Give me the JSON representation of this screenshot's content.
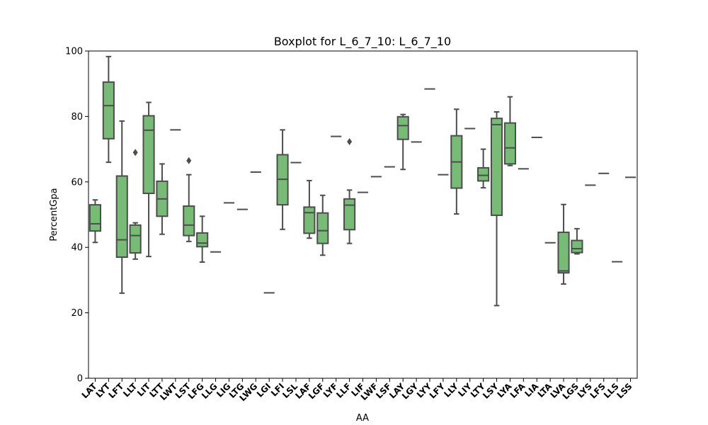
{
  "chart_data": {
    "type": "boxplot",
    "title": "Boxplot for L_6_7_10: L_6_7_10",
    "xlabel": "AA",
    "ylabel": "PercentGpa",
    "ylim": [
      0,
      100
    ],
    "yticks": [
      0,
      20,
      40,
      60,
      80,
      100
    ],
    "box_color": "#77bb77",
    "line_color": "#4d4d4d",
    "categories": [
      "LAT",
      "LYT",
      "LFT",
      "LLT",
      "LIT",
      "LTT",
      "LWT",
      "LST",
      "LFG",
      "LLG",
      "LIG",
      "LTG",
      "LWG",
      "LGI",
      "LFI",
      "LSL",
      "LAF",
      "LGF",
      "LYF",
      "LLF",
      "LIF",
      "LWF",
      "LSF",
      "LAY",
      "LGY",
      "LYY",
      "LFY",
      "LLY",
      "LIY",
      "LTY",
      "LSY",
      "LYA",
      "LFA",
      "LIA",
      "LTA",
      "LVA",
      "LGS",
      "LYS",
      "LFS",
      "LLS",
      "LSS"
    ],
    "boxes": [
      {
        "min": 41.5,
        "q1": 45,
        "median": 47.2,
        "q3": 53,
        "max": 54.5,
        "fliers": []
      },
      {
        "min": 66,
        "q1": 73.2,
        "median": 83.3,
        "q3": 90.5,
        "max": 98.3,
        "fliers": []
      },
      {
        "min": 26,
        "q1": 37,
        "median": 42.3,
        "q3": 61.8,
        "max": 78.6,
        "fliers": []
      },
      {
        "min": 36.4,
        "q1": 38.3,
        "median": 43.6,
        "q3": 46.8,
        "max": 47.5,
        "fliers": [
          69
        ]
      },
      {
        "min": 37.2,
        "q1": 56.5,
        "median": 75.8,
        "q3": 80.2,
        "max": 84.3,
        "fliers": []
      },
      {
        "min": 44,
        "q1": 49.5,
        "median": 54.8,
        "q3": 60.2,
        "max": 65.5,
        "fliers": []
      },
      {
        "min": 75.9,
        "q1": 75.9,
        "median": 75.9,
        "q3": 75.9,
        "max": 75.9,
        "fliers": []
      },
      {
        "min": 41.8,
        "q1": 43.6,
        "median": 46.8,
        "q3": 52.6,
        "max": 62.2,
        "fliers": [
          66.5
        ]
      },
      {
        "min": 35.5,
        "q1": 40.2,
        "median": 41.3,
        "q3": 44.4,
        "max": 49.5,
        "fliers": []
      },
      {
        "min": 38.6,
        "q1": 38.6,
        "median": 38.6,
        "q3": 38.6,
        "max": 38.6,
        "fliers": []
      },
      {
        "min": 53.6,
        "q1": 53.6,
        "median": 53.6,
        "q3": 53.6,
        "max": 53.6,
        "fliers": []
      },
      {
        "min": 51.6,
        "q1": 51.6,
        "median": 51.6,
        "q3": 51.6,
        "max": 51.6,
        "fliers": []
      },
      {
        "min": 63,
        "q1": 63,
        "median": 63,
        "q3": 63,
        "max": 63,
        "fliers": []
      },
      {
        "min": 26.1,
        "q1": 26.1,
        "median": 26.1,
        "q3": 26.1,
        "max": 26.1,
        "fliers": []
      },
      {
        "min": 45.5,
        "q1": 53,
        "median": 60.8,
        "q3": 68.3,
        "max": 75.9,
        "fliers": []
      },
      {
        "min": 65.9,
        "q1": 65.9,
        "median": 65.9,
        "q3": 65.9,
        "max": 65.9,
        "fliers": []
      },
      {
        "min": 42.8,
        "q1": 44.3,
        "median": 50.6,
        "q3": 52.3,
        "max": 60.4,
        "fliers": []
      },
      {
        "min": 37.6,
        "q1": 41.2,
        "median": 45.1,
        "q3": 50.5,
        "max": 55.9,
        "fliers": []
      },
      {
        "min": 73.9,
        "q1": 73.9,
        "median": 73.9,
        "q3": 73.9,
        "max": 73.9,
        "fliers": []
      },
      {
        "min": 41.2,
        "q1": 45.4,
        "median": 52.9,
        "q3": 54.8,
        "max": 57.5,
        "fliers": [
          72.3
        ]
      },
      {
        "min": 56.8,
        "q1": 56.8,
        "median": 56.8,
        "q3": 56.8,
        "max": 56.8,
        "fliers": []
      },
      {
        "min": 61.6,
        "q1": 61.6,
        "median": 61.6,
        "q3": 61.6,
        "max": 61.6,
        "fliers": []
      },
      {
        "min": 64.6,
        "q1": 64.6,
        "median": 64.6,
        "q3": 64.6,
        "max": 64.6,
        "fliers": []
      },
      {
        "min": 63.8,
        "q1": 73,
        "median": 77.2,
        "q3": 79.9,
        "max": 80.6,
        "fliers": []
      },
      {
        "min": 72.2,
        "q1": 72.2,
        "median": 72.2,
        "q3": 72.2,
        "max": 72.2,
        "fliers": []
      },
      {
        "min": 88.4,
        "q1": 88.4,
        "median": 88.4,
        "q3": 88.4,
        "max": 88.4,
        "fliers": []
      },
      {
        "min": 62.2,
        "q1": 62.2,
        "median": 62.2,
        "q3": 62.2,
        "max": 62.2,
        "fliers": []
      },
      {
        "min": 50.2,
        "q1": 58.1,
        "median": 66.1,
        "q3": 74.1,
        "max": 82.2,
        "fliers": []
      },
      {
        "min": 76.3,
        "q1": 76.3,
        "median": 76.3,
        "q3": 76.3,
        "max": 76.3,
        "fliers": []
      },
      {
        "min": 58.2,
        "q1": 60.3,
        "median": 62,
        "q3": 64.3,
        "max": 70,
        "fliers": []
      },
      {
        "min": 22.2,
        "q1": 49.8,
        "median": 77.5,
        "q3": 79.4,
        "max": 81.4,
        "fliers": []
      },
      {
        "min": 65,
        "q1": 65.5,
        "median": 70.4,
        "q3": 78,
        "max": 86,
        "fliers": []
      },
      {
        "min": 64,
        "q1": 64,
        "median": 64,
        "q3": 64,
        "max": 64,
        "fliers": []
      },
      {
        "min": 73.6,
        "q1": 73.6,
        "median": 73.6,
        "q3": 73.6,
        "max": 73.6,
        "fliers": []
      },
      {
        "min": 41.4,
        "q1": 41.4,
        "median": 41.4,
        "q3": 41.4,
        "max": 41.4,
        "fliers": []
      },
      {
        "min": 28.8,
        "q1": 32.2,
        "median": 32.8,
        "q3": 44.6,
        "max": 53.1,
        "fliers": []
      },
      {
        "min": 38,
        "q1": 38.4,
        "median": 39.6,
        "q3": 42.1,
        "max": 45.7,
        "fliers": []
      },
      {
        "min": 59,
        "q1": 59,
        "median": 59,
        "q3": 59,
        "max": 59,
        "fliers": []
      },
      {
        "min": 62.6,
        "q1": 62.6,
        "median": 62.6,
        "q3": 62.6,
        "max": 62.6,
        "fliers": []
      },
      {
        "min": 35.6,
        "q1": 35.6,
        "median": 35.6,
        "q3": 35.6,
        "max": 35.6,
        "fliers": []
      },
      {
        "min": 61.4,
        "q1": 61.4,
        "median": 61.4,
        "q3": 61.4,
        "max": 61.4,
        "fliers": []
      }
    ]
  }
}
